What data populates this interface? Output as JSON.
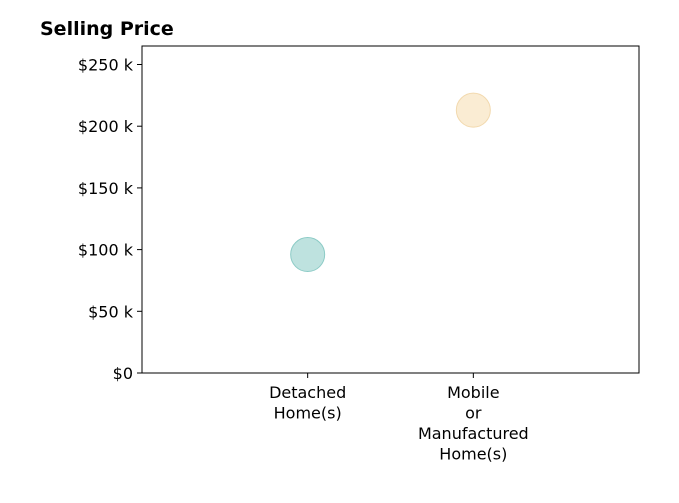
{
  "chart_data": {
    "type": "scatter",
    "title": "Selling Price",
    "xlabel": "",
    "ylabel": "",
    "categories": [
      [
        "Detached",
        "Home(s)"
      ],
      [
        "Mobile",
        "or",
        "Manufactured",
        "Home(s)"
      ]
    ],
    "values": [
      96000,
      213000
    ],
    "point_colors": [
      "#a8d8d4",
      "#f8e6c4"
    ],
    "point_stroke_colors": [
      "#8ccbc6",
      "#f2d9ae"
    ],
    "ylim": [
      0,
      265000
    ],
    "xlim": [
      0,
      3
    ],
    "yticks": [
      {
        "value": 0,
        "label": "$0"
      },
      {
        "value": 50000,
        "label": "$50 k"
      },
      {
        "value": 100000,
        "label": "$100 k"
      },
      {
        "value": 150000,
        "label": "$150 k"
      },
      {
        "value": 200000,
        "label": "$200 k"
      },
      {
        "value": 250000,
        "label": "$250 k"
      }
    ],
    "grid": false,
    "legend": "none"
  }
}
